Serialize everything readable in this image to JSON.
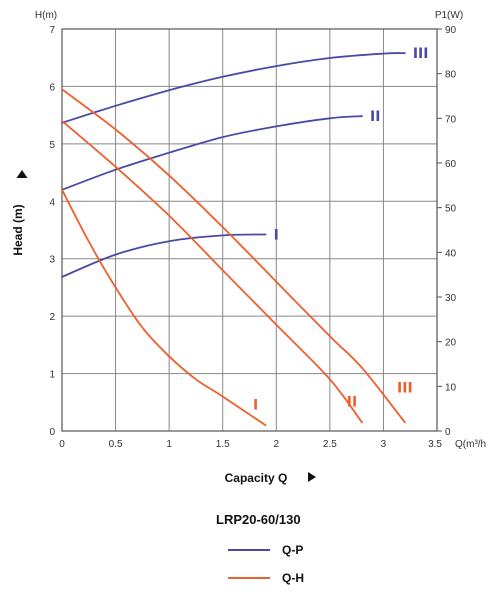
{
  "chart_data": {
    "type": "line",
    "model": "LRP20-60/130",
    "xlabel": "Capacity Q",
    "x_unit": "Q(m³/h",
    "ylabel": "Head (m)",
    "y_unit": "H(m)",
    "y2label": "P1(W)",
    "xlim": [
      0,
      3.5
    ],
    "ylim": [
      0,
      7
    ],
    "y2lim": [
      0,
      90
    ],
    "x_ticks": [
      "0",
      "0.5",
      "1",
      "1.5",
      "2",
      "2.5",
      "3",
      "3.5"
    ],
    "y_ticks": [
      "0",
      "1",
      "2",
      "3",
      "4",
      "5",
      "6",
      "7"
    ],
    "y2_ticks": [
      "0",
      "10",
      "20",
      "30",
      "40",
      "50",
      "60",
      "70",
      "80",
      "90"
    ],
    "grid": true,
    "colors": {
      "power": "#4a4aa6",
      "head": "#ee5f2c"
    },
    "series": [
      {
        "name": "Q-P",
        "label": "III",
        "axis": "right",
        "color": "#4a4aa6",
        "x": [
          0,
          0.5,
          1,
          1.5,
          2,
          2.5,
          3,
          3.2
        ],
        "y": [
          69,
          72.8,
          76.3,
          79.3,
          81.7,
          83.5,
          84.5,
          84.6
        ]
      },
      {
        "name": "Q-P",
        "label": "II",
        "axis": "right",
        "color": "#4a4aa6",
        "x": [
          0,
          0.5,
          1,
          1.5,
          2,
          2.5,
          2.8
        ],
        "y": [
          54,
          58.5,
          62.3,
          65.8,
          68.2,
          70,
          70.5
        ]
      },
      {
        "name": "Q-P",
        "label": "I",
        "axis": "right",
        "color": "#4a4aa6",
        "x": [
          0,
          0.5,
          1,
          1.5,
          1.9
        ],
        "y": [
          34.5,
          39.5,
          42.5,
          43.8,
          44
        ]
      },
      {
        "name": "Q-H",
        "label": "III",
        "axis": "left",
        "color": "#ee5f2c",
        "x": [
          0,
          0.5,
          1,
          1.5,
          2,
          2.5,
          2.8,
          3.2
        ],
        "y": [
          5.95,
          5.25,
          4.45,
          3.55,
          2.6,
          1.65,
          1.1,
          0.15
        ]
      },
      {
        "name": "Q-H",
        "label": "II",
        "axis": "left",
        "color": "#ee5f2c",
        "x": [
          0,
          0.5,
          1,
          1.5,
          2,
          2.5,
          2.8
        ],
        "y": [
          5.4,
          4.6,
          3.75,
          2.8,
          1.85,
          0.9,
          0.15
        ]
      },
      {
        "name": "Q-H",
        "label": "I",
        "axis": "left",
        "color": "#ee5f2c",
        "x": [
          0,
          0.25,
          0.5,
          0.75,
          1,
          1.25,
          1.5,
          1.9
        ],
        "y": [
          4.2,
          3.3,
          2.5,
          1.8,
          1.3,
          0.9,
          0.6,
          0.1
        ]
      }
    ],
    "legend": [
      {
        "name": "Q-P",
        "color": "#4a4aa6"
      },
      {
        "name": "Q-H",
        "color": "#ee5f2c"
      }
    ]
  }
}
